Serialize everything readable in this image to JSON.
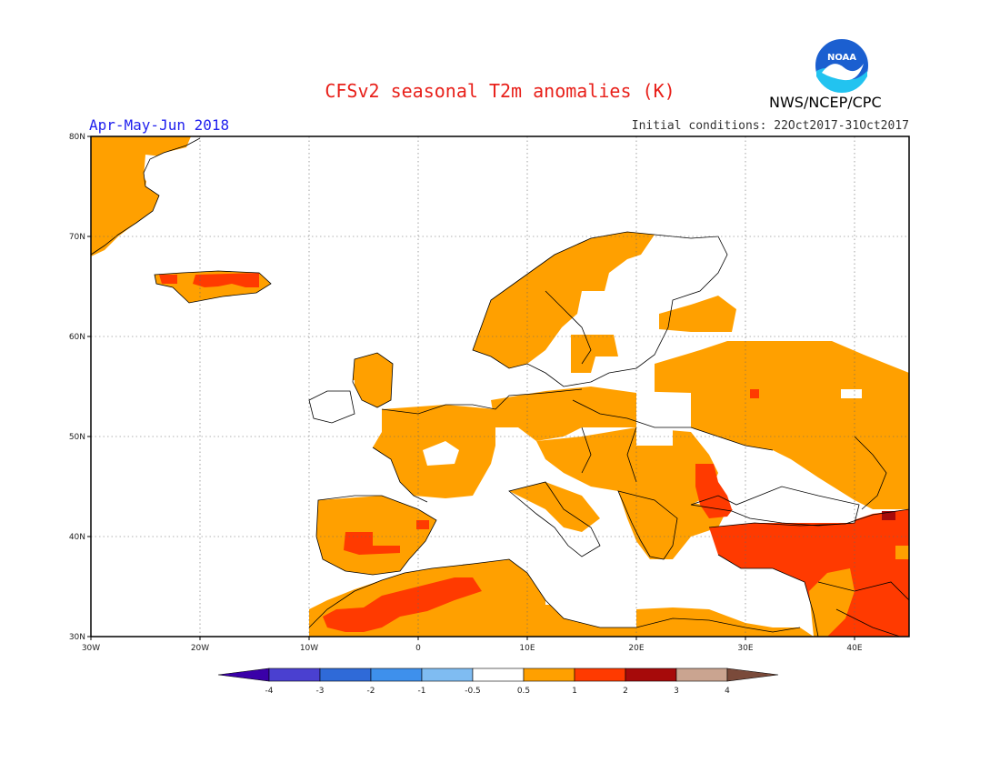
{
  "title": "CFSv2 seasonal T2m anomalies (K)",
  "period": "Apr-May-Jun 2018",
  "initial_conditions": "Initial conditions: 22Oct2017-31Oct2017",
  "agency": "NWS/NCEP/CPC",
  "logo_text": "NOAA",
  "lat_labels": [
    "80N",
    "70N",
    "60N",
    "50N",
    "40N",
    "30N"
  ],
  "lon_labels": [
    "30W",
    "20W",
    "10W",
    "0",
    "10E",
    "20E",
    "30E",
    "40E"
  ],
  "colorbar": {
    "labels": [
      "-4",
      "-3",
      "-2",
      "-1",
      "-0.5",
      "0.5",
      "1",
      "2",
      "3",
      "4"
    ],
    "colors": [
      "#3a00a8",
      "#4a40d0",
      "#2f6ad8",
      "#3e90ec",
      "#7fbcf2",
      "#ffffff",
      "#ffa000",
      "#ff3a00",
      "#a60a0a",
      "#caa490",
      "#7a4a3a"
    ]
  },
  "colors": {
    "ocean": "#ffffff",
    "anom_0_5_to_1": "#ffa000",
    "anom_1_to_2": "#ff3a00",
    "anom_2_to_3": "#a60a0a"
  }
}
